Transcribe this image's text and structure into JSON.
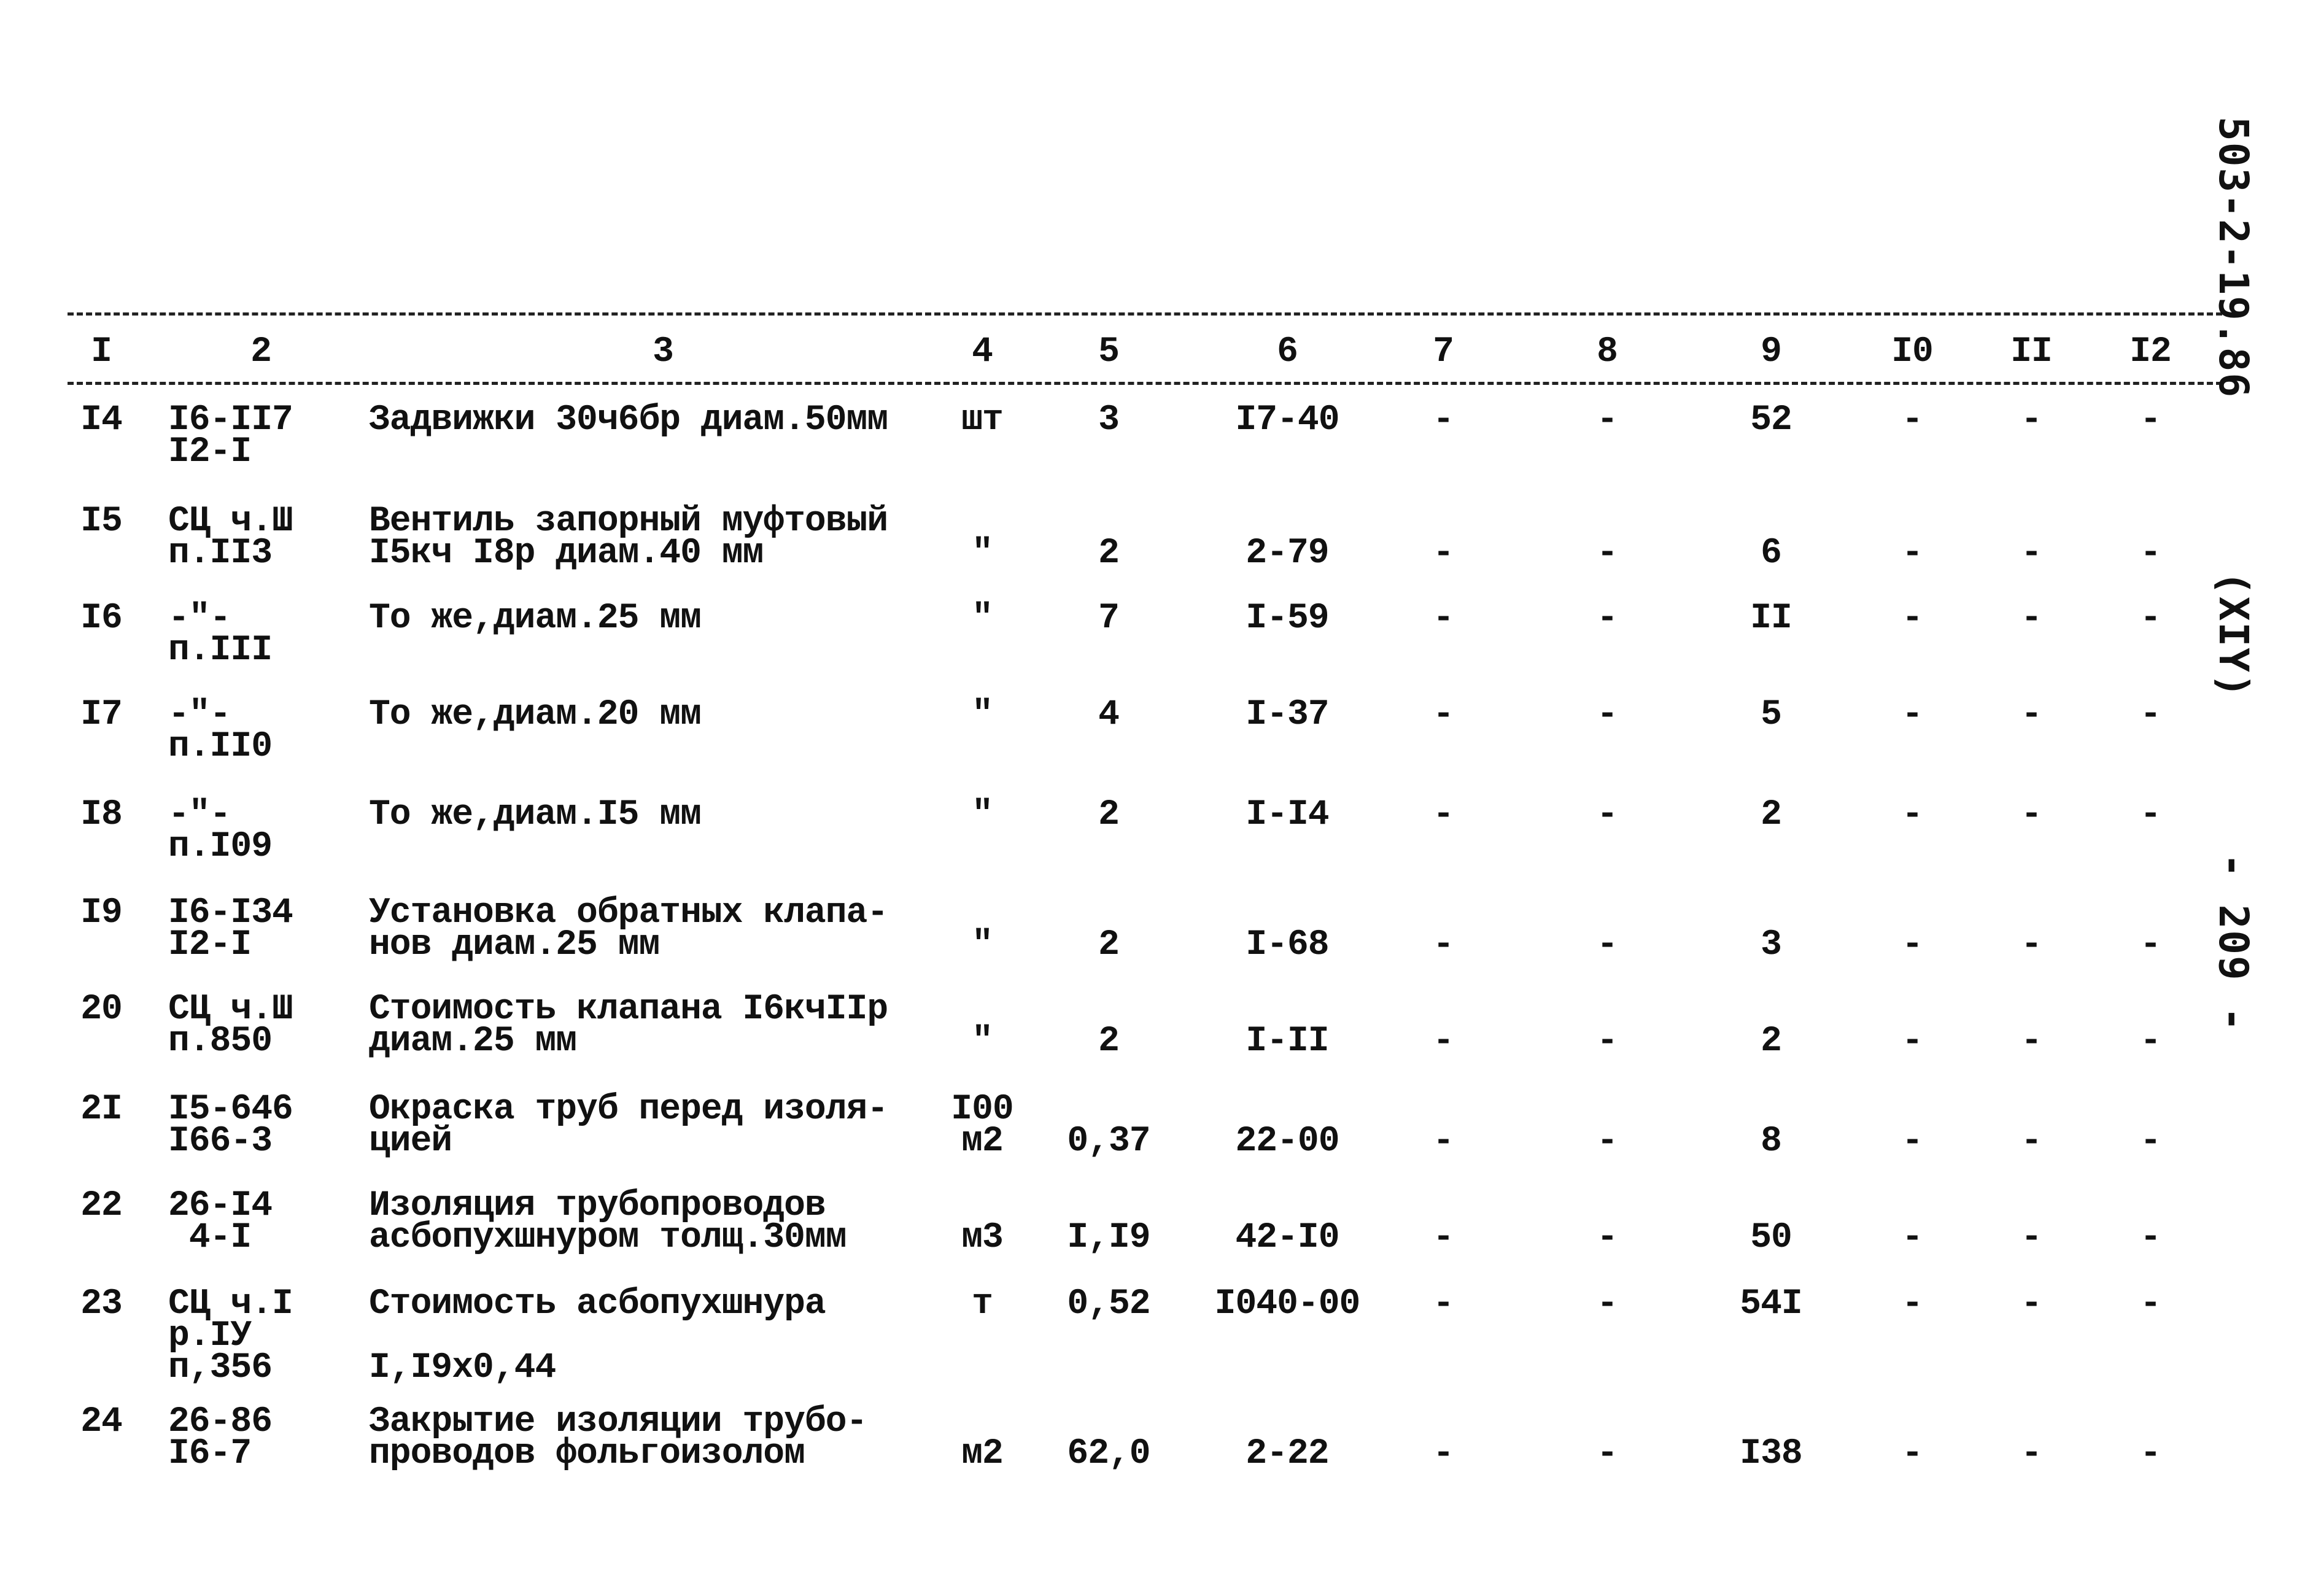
{
  "side_labels": {
    "document_code": "503-2-19.86",
    "album": "(XIY)",
    "page_number": "- 209 -"
  },
  "column_headers": [
    "I",
    "2",
    "3",
    "4",
    "5",
    "6",
    "7",
    "8",
    "9",
    "I0",
    "II",
    "I2"
  ],
  "rows": [
    {
      "no": "I4",
      "ref": "I6-II7\nI2-I",
      "name": "Задвижки 30ч6бр диам.50мм",
      "unit": "шт",
      "qty": "3",
      "price": "I7-40",
      "c7": "-",
      "c8": "-",
      "c9": "52",
      "c10": "-",
      "c11": "-",
      "c12": "-"
    },
    {
      "no": "I5",
      "ref": "СЦ ч.Ш\nп.II3",
      "name": "Вентиль запорный муфтовый\nI5кч I8р диам.40 мм",
      "unit": "\"",
      "qty": "2",
      "price": "2-79",
      "c7": "-",
      "c8": "-",
      "c9": "6",
      "c10": "-",
      "c11": "-",
      "c12": "-"
    },
    {
      "no": "I6",
      "ref": "-\"-\nп.III",
      "name": "То же,диам.25 мм",
      "unit": "\"",
      "qty": "7",
      "price": "I-59",
      "c7": "-",
      "c8": "-",
      "c9": "II",
      "c10": "-",
      "c11": "-",
      "c12": "-"
    },
    {
      "no": "I7",
      "ref": "-\"-\nп.II0",
      "name": "То же,диам.20 мм",
      "unit": "\"",
      "qty": "4",
      "price": "I-37",
      "c7": "-",
      "c8": "-",
      "c9": "5",
      "c10": "-",
      "c11": "-",
      "c12": "-"
    },
    {
      "no": "I8",
      "ref": "-\"-\nп.I09",
      "name": "То же,диам.I5 мм",
      "unit": "\"",
      "qty": "2",
      "price": "I-I4",
      "c7": "-",
      "c8": "-",
      "c9": "2",
      "c10": "-",
      "c11": "-",
      "c12": "-"
    },
    {
      "no": "I9",
      "ref": "I6-I34\nI2-I",
      "name": "Установка обратных клапа-\nнов диам.25 мм",
      "unit": "\"",
      "qty": "2",
      "price": "I-68",
      "c7": "-",
      "c8": "-",
      "c9": "3",
      "c10": "-",
      "c11": "-",
      "c12": "-"
    },
    {
      "no": "20",
      "ref": "СЦ ч.Ш\nп.850",
      "name": "Стоимость клапана I6кчIIр\nдиам.25 мм",
      "unit": "\"",
      "qty": "2",
      "price": "I-II",
      "c7": "-",
      "c8": "-",
      "c9": "2",
      "c10": "-",
      "c11": "-",
      "c12": "-"
    },
    {
      "no": "2I",
      "ref": "I5-646\nI66-3",
      "name": "Окраска труб перед изоля-\nцией",
      "unit": "I00\nм2",
      "qty": "0,37",
      "price": "22-00",
      "c7": "-",
      "c8": "-",
      "c9": "8",
      "c10": "-",
      "c11": "-",
      "c12": "-"
    },
    {
      "no": "22",
      "ref": "26-I4\n 4-I",
      "name": "Изоляция трубопроводов\nасбопухшнуром толщ.30мм",
      "unit": "м3",
      "qty": "I,I9",
      "price": "42-I0",
      "c7": "-",
      "c8": "-",
      "c9": "50",
      "c10": "-",
      "c11": "-",
      "c12": "-"
    },
    {
      "no": "23",
      "ref": "СЦ ч.I\nр.IУ\nп,356",
      "name": "Стоимость асбопухшнура\n\nI,I9x0,44",
      "unit": "т",
      "qty": "0,52",
      "price": "I040-00",
      "c7": "-",
      "c8": "-",
      "c9": "54I",
      "c10": "-",
      "c11": "-",
      "c12": "-"
    },
    {
      "no": "24",
      "ref": "26-86\nI6-7",
      "name": "Закрытие изоляции трубо-\nпроводов фольгоизолом",
      "unit": "м2",
      "qty": "62,0",
      "price": "2-22",
      "c7": "-",
      "c8": "-",
      "c9": "I38",
      "c10": "-",
      "c11": "-",
      "c12": "-"
    }
  ]
}
